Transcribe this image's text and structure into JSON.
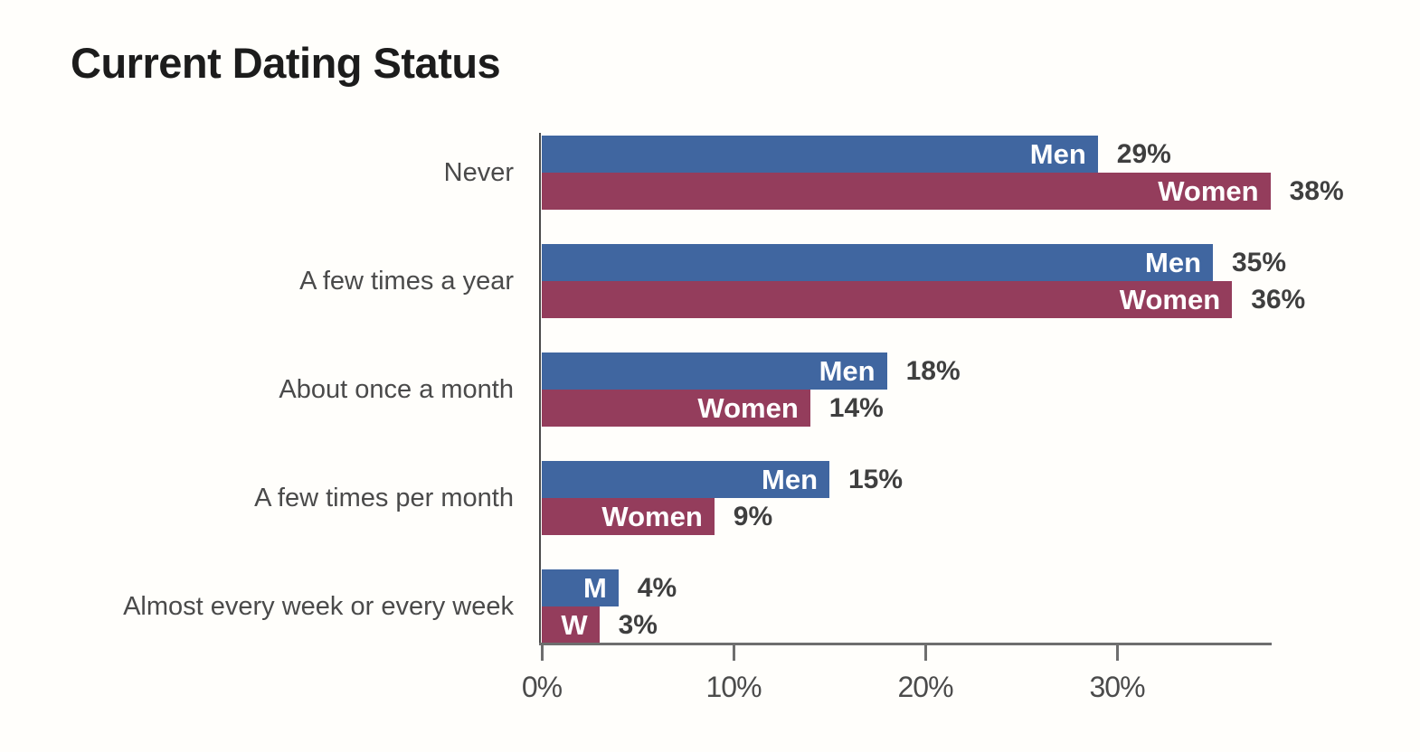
{
  "title": "Current Dating Status",
  "colors": {
    "men_bar": "#4066a0",
    "women_bar": "#943d5c",
    "x_axis_line": "#6e6e6e",
    "y_axis_line": "#4a4a4a",
    "value_label": "#3f3f3f",
    "category_label": "#4a4a4a",
    "tick_label": "#4b4b4b",
    "title_text": "#1c1c1c",
    "bar_inner_label": "#ffffff",
    "background": "#fffefb"
  },
  "chart_data": {
    "type": "bar",
    "orientation": "horizontal",
    "title": "Current Dating Status",
    "xlabel": "",
    "ylabel": "",
    "xlim": [
      0,
      38
    ],
    "grid": false,
    "legend_position": "labels-inside-bars",
    "value_suffix": "%",
    "categories": [
      "Never",
      "A few times a year",
      "About once a month",
      "A few times per month",
      "Almost every week or every week"
    ],
    "series": [
      {
        "name": "Men",
        "color": "#4066a0",
        "values": [
          29,
          35,
          18,
          15,
          4
        ],
        "value_labels": [
          "29%",
          "35%",
          "18%",
          "15%",
          "4%"
        ],
        "bar_labels": [
          "Men",
          "Men",
          "Men",
          "Men",
          "M"
        ]
      },
      {
        "name": "Women",
        "color": "#943d5c",
        "values": [
          38,
          36,
          14,
          9,
          3
        ],
        "value_labels": [
          "38%",
          "36%",
          "14%",
          "9%",
          "3%"
        ],
        "bar_labels": [
          "Women",
          "Women",
          "Women",
          "Women",
          "W"
        ]
      }
    ],
    "x_axis": {
      "tick_labels": [
        "0%",
        "10%",
        "20%",
        "30%"
      ],
      "tick_values": [
        0,
        10,
        20,
        30
      ]
    }
  }
}
